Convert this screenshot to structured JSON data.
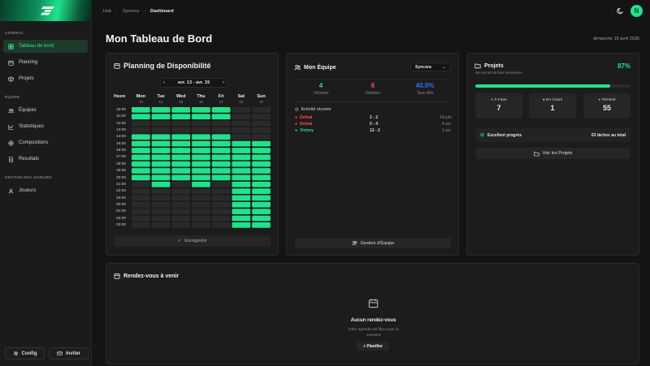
{
  "sidebar": {
    "section_general": "GÉNÉRAL",
    "items_general": [
      {
        "label": "Tableau de bord",
        "icon": "grid-icon"
      },
      {
        "label": "Planning",
        "icon": "calendar-icon"
      },
      {
        "label": "Projets",
        "icon": "box-icon"
      }
    ],
    "section_team": "ÉQUIPE",
    "items_team": [
      {
        "label": "Équipes",
        "icon": "users-icon"
      },
      {
        "label": "Statistiques",
        "icon": "chart-icon"
      },
      {
        "label": "Compositions",
        "icon": "compositions-icon"
      },
      {
        "label": "Resultats",
        "icon": "document-icon"
      }
    ],
    "section_players": "GESTION DES JOUEURS",
    "items_players": [
      {
        "label": "Joueurs",
        "icon": "user-icon"
      }
    ],
    "config_label": "Config",
    "invite_label": "Inviter"
  },
  "breadcrumb": {
    "items": [
      "Hub",
      "Syncora"
    ],
    "current": "Dashboard"
  },
  "page": {
    "title": "Mon Tableau de Bord",
    "date": "dimanche 19 avril 2026",
    "avatar_letter": "N"
  },
  "colors": {
    "accent": "#1fe38c",
    "loss": "#ff4d4d",
    "winrate": "#3b6bff",
    "todo": "#4a9cff",
    "inprogress": "#f5c542"
  },
  "planning": {
    "title": "Planning de Disponibilité",
    "week_label": "avr. 13 - avr. 19",
    "hour_header": "Heure",
    "days": [
      {
        "name": "Mon",
        "date": "13"
      },
      {
        "name": "Tue",
        "date": "14"
      },
      {
        "name": "Wed",
        "date": "15"
      },
      {
        "name": "Thu",
        "date": "16"
      },
      {
        "name": "Fri",
        "date": "17"
      },
      {
        "name": "Sat",
        "date": "18"
      },
      {
        "name": "Sun",
        "date": "19"
      }
    ],
    "hours": [
      "10:00",
      "11:00",
      "12:00",
      "13:00",
      "14:00",
      "15:00",
      "16:00",
      "17:00",
      "18:00",
      "19:00",
      "20:00",
      "21:00",
      "22:00",
      "23:00",
      "00:00",
      "01:00",
      "02:00",
      "03:00"
    ],
    "availability": [
      [
        1,
        1,
        1,
        1,
        1,
        0,
        0
      ],
      [
        1,
        1,
        1,
        1,
        1,
        0,
        0
      ],
      [
        0,
        0,
        0,
        0,
        0,
        0,
        0
      ],
      [
        0,
        0,
        0,
        0,
        0,
        0,
        0
      ],
      [
        1,
        1,
        1,
        1,
        1,
        0,
        0
      ],
      [
        1,
        1,
        1,
        1,
        1,
        1,
        1
      ],
      [
        1,
        1,
        1,
        1,
        1,
        1,
        1
      ],
      [
        1,
        1,
        1,
        1,
        1,
        1,
        1
      ],
      [
        1,
        1,
        1,
        1,
        1,
        1,
        1
      ],
      [
        1,
        1,
        1,
        1,
        1,
        1,
        1
      ],
      [
        1,
        1,
        1,
        1,
        1,
        1,
        1
      ],
      [
        0,
        1,
        0,
        1,
        0,
        1,
        1
      ],
      [
        0,
        0,
        0,
        0,
        0,
        1,
        1
      ],
      [
        0,
        0,
        0,
        0,
        0,
        1,
        1
      ],
      [
        0,
        0,
        0,
        0,
        0,
        1,
        1
      ],
      [
        0,
        0,
        0,
        0,
        0,
        1,
        1
      ],
      [
        0,
        0,
        0,
        0,
        0,
        1,
        1
      ],
      [
        0,
        0,
        0,
        0,
        0,
        1,
        1
      ]
    ],
    "saved_label": "Enregistré"
  },
  "team": {
    "title": "Mon Équipe",
    "selected": "Syncora",
    "stats": [
      {
        "value": "4",
        "label": "Victoires"
      },
      {
        "value": "6",
        "label": "Défaites"
      },
      {
        "value": "40.0%",
        "label": "Taux Win"
      }
    ],
    "activity_title": "Activité récente",
    "activity": [
      {
        "result": "Defeat",
        "score": "2 - 2",
        "date": "14 juin"
      },
      {
        "result": "Defeat",
        "score": "0 - 4",
        "date": "4 avr."
      },
      {
        "result": "Victory",
        "score": "13 - 2",
        "date": "1 avr."
      }
    ],
    "manage_label": "Gestion d'Équipe"
  },
  "projects": {
    "title": "Projets",
    "percent": "87%",
    "progress": 0.87,
    "subtitle": "55 sur 63 tâches terminées",
    "statuses": [
      {
        "label": "À Faire",
        "value": "7"
      },
      {
        "label": "En Cours",
        "value": "1"
      },
      {
        "label": "Terminé",
        "value": "55"
      }
    ],
    "banner_label": "Excellent progrès",
    "banner_count": "63 tâches au total",
    "view_label": "Voir les Projets"
  },
  "appointments": {
    "title": "Rendez-vous à venir",
    "empty_title": "Aucun rendez-vous",
    "empty_line1": "Votre agenda est libre pour le",
    "empty_line2": "moment",
    "plan_label": "+ Planifier"
  }
}
